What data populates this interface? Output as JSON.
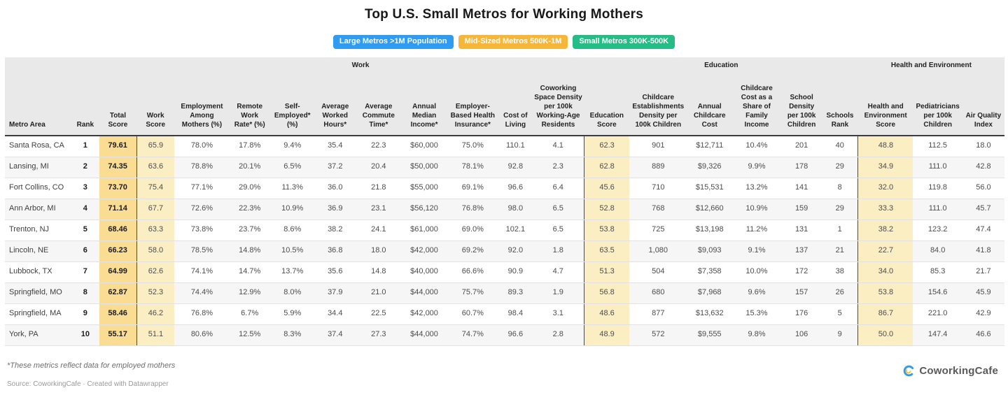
{
  "legend": [
    {
      "label": "Large Metros >1M Population",
      "color": "#2f9bf1"
    },
    {
      "label": "Mid-Sized Metros 500K-1M",
      "color": "#f5b63a"
    },
    {
      "label": "Small Metros 300K-500K",
      "color": "#25bd85"
    }
  ],
  "chart_data": {
    "type": "table",
    "title": "Top U.S. Small Metros for Working Mothers",
    "column_groups": [
      {
        "label": "",
        "span": 3
      },
      {
        "label": "Work",
        "span": 10
      },
      {
        "label": "Education",
        "span": 6
      },
      {
        "label": "Health and Environment",
        "span": 3
      }
    ],
    "columns": [
      "Metro Area",
      "Rank",
      "Total Score",
      "Work Score",
      "Employment Among Mothers (%)",
      "Remote Work Rate* (%)",
      "Self-Employed* (%)",
      "Average Worked Hours*",
      "Average Commute Time*",
      "Annual Median Income*",
      "Employer-Based Health Insurance*",
      "Cost of Living",
      "Coworking Space Density per 100k Working-Age Residents",
      "Education Score",
      "Childcare Establishments Density per 100k Children",
      "Annual Childcare Cost",
      "Childcare Cost as a Share of Family Income",
      "School Density per 100k Children",
      "Schools Rank",
      "Health and Environment Score",
      "Pediatricians per 100k Children",
      "Air Quality Index"
    ],
    "rows": [
      [
        "Santa Rosa, CA",
        "1",
        "79.61",
        "65.9",
        "78.0%",
        "17.8%",
        "9.4%",
        "35.4",
        "22.3",
        "$60,000",
        "75.0%",
        "110.1",
        "4.1",
        "62.3",
        "901",
        "$12,711",
        "10.4%",
        "201",
        "40",
        "48.8",
        "112.5",
        "18.0"
      ],
      [
        "Lansing, MI",
        "2",
        "74.35",
        "63.6",
        "78.8%",
        "20.1%",
        "6.5%",
        "37.2",
        "20.4",
        "$50,000",
        "78.1%",
        "92.8",
        "2.3",
        "62.8",
        "889",
        "$9,326",
        "9.9%",
        "178",
        "29",
        "34.9",
        "111.0",
        "42.8"
      ],
      [
        "Fort Collins, CO",
        "3",
        "73.70",
        "75.4",
        "77.1%",
        "29.0%",
        "11.3%",
        "36.0",
        "21.8",
        "$55,000",
        "69.1%",
        "96.6",
        "6.4",
        "45.6",
        "710",
        "$15,531",
        "13.2%",
        "141",
        "8",
        "32.0",
        "119.8",
        "56.0"
      ],
      [
        "Ann Arbor, MI",
        "4",
        "71.14",
        "67.7",
        "72.6%",
        "22.3%",
        "10.9%",
        "36.9",
        "23.1",
        "$56,120",
        "76.8%",
        "98.0",
        "6.5",
        "52.8",
        "768",
        "$12,660",
        "10.9%",
        "159",
        "29",
        "33.3",
        "111.0",
        "45.7"
      ],
      [
        "Trenton, NJ",
        "5",
        "68.46",
        "63.3",
        "73.8%",
        "23.7%",
        "8.6%",
        "38.2",
        "24.1",
        "$61,000",
        "69.0%",
        "102.1",
        "6.5",
        "53.8",
        "725",
        "$13,198",
        "11.2%",
        "131",
        "1",
        "38.2",
        "123.2",
        "47.4"
      ],
      [
        "Lincoln, NE",
        "6",
        "66.23",
        "58.0",
        "78.5%",
        "14.8%",
        "10.5%",
        "36.8",
        "18.0",
        "$42,000",
        "69.2%",
        "92.0",
        "1.8",
        "63.5",
        "1,080",
        "$9,093",
        "9.1%",
        "137",
        "21",
        "22.7",
        "84.0",
        "41.8"
      ],
      [
        "Lubbock, TX",
        "7",
        "64.99",
        "62.6",
        "74.1%",
        "14.7%",
        "13.7%",
        "35.6",
        "14.8",
        "$40,000",
        "66.6%",
        "90.9",
        "4.7",
        "51.3",
        "504",
        "$7,358",
        "10.0%",
        "172",
        "38",
        "34.0",
        "85.3",
        "21.7"
      ],
      [
        "Springfield, MO",
        "8",
        "62.87",
        "52.3",
        "74.4%",
        "12.9%",
        "8.0%",
        "37.9",
        "21.0",
        "$44,000",
        "75.7%",
        "89.3",
        "1.9",
        "56.8",
        "680",
        "$7,968",
        "9.6%",
        "157",
        "26",
        "53.8",
        "154.6",
        "45.9"
      ],
      [
        "Springfield, MA",
        "9",
        "58.46",
        "46.2",
        "76.8%",
        "6.7%",
        "5.9%",
        "34.4",
        "22.5",
        "$42,000",
        "60.7%",
        "98.4",
        "3.1",
        "48.6",
        "877",
        "$13,632",
        "15.3%",
        "176",
        "5",
        "86.7",
        "221.0",
        "42.9"
      ],
      [
        "York, PA",
        "10",
        "55.17",
        "51.1",
        "80.6%",
        "12.5%",
        "8.3%",
        "37.4",
        "27.3",
        "$44,000",
        "74.7%",
        "96.6",
        "2.8",
        "48.9",
        "572",
        "$9,555",
        "9.8%",
        "106",
        "9",
        "50.0",
        "147.4",
        "46.6"
      ]
    ]
  },
  "footnote": "*These metrics reflect data for employed mothers",
  "source": "Source: CoworkingCafe · Created with Datawrapper",
  "logo_label": "CoworkingCafe",
  "colors": {
    "header_band": "#e9e9e9",
    "total_score_highlight": "#fadc92",
    "score_highlight": "#fbeec2",
    "row_stripe": "#f6f6f6",
    "legend_blue": "#2f9bf1",
    "legend_amber": "#f5b63a",
    "legend_green": "#25bd85"
  }
}
